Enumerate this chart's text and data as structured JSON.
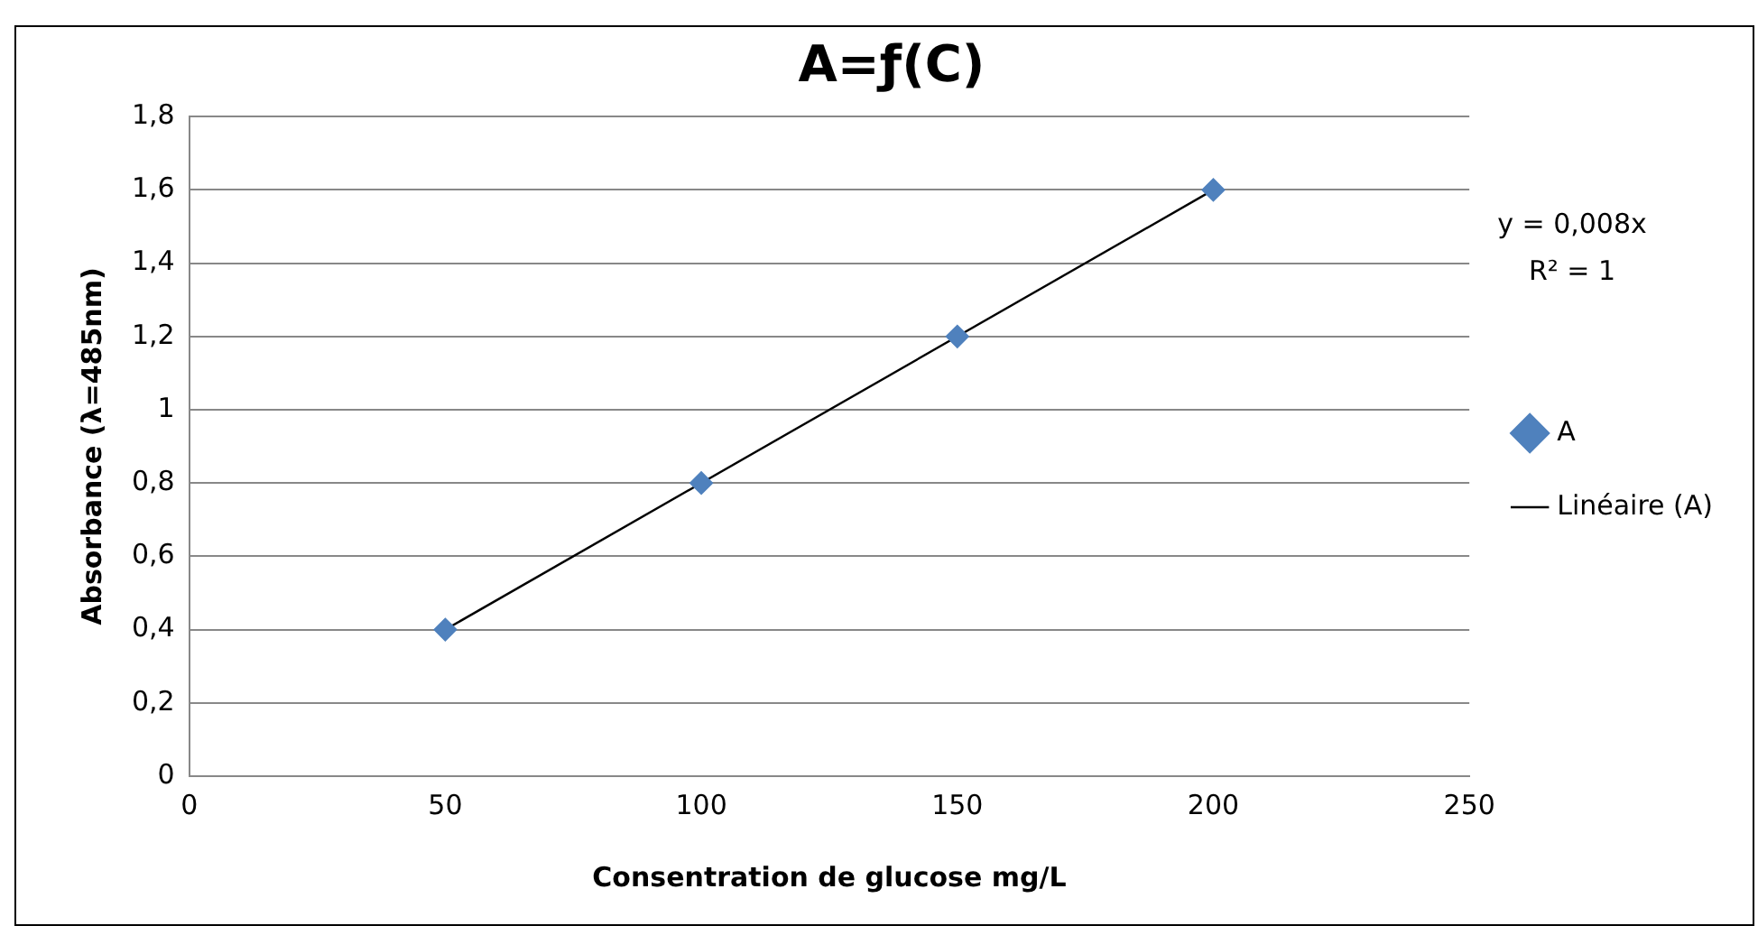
{
  "chart_data": {
    "type": "scatter",
    "title": "A=ƒ(C)",
    "xlabel": "Consentration de glucose mg/L",
    "ylabel": "Absorbance (λ=485nm)",
    "series": [
      {
        "name": "A",
        "color": "#4f81bd",
        "x": [
          50,
          100,
          150,
          200
        ],
        "values": [
          0.4,
          0.8,
          1.2,
          1.6
        ],
        "marker": "diamond"
      },
      {
        "name": "Linéaire (A)",
        "type": "line",
        "color": "#000000",
        "x": [
          50,
          200
        ],
        "values": [
          0.4,
          1.6
        ],
        "marker": "none",
        "line_style": "solid"
      }
    ],
    "xlim": [
      0,
      250
    ],
    "xticks": [
      0,
      50,
      100,
      150,
      200,
      250
    ],
    "ylim": [
      0,
      1.8
    ],
    "yticks": [
      {
        "value": 0,
        "label": "0"
      },
      {
        "value": 0.2,
        "label": "0,2"
      },
      {
        "value": 0.4,
        "label": "0,4"
      },
      {
        "value": 0.6,
        "label": "0,6"
      },
      {
        "value": 0.8,
        "label": "0,8"
      },
      {
        "value": 1,
        "label": "1"
      },
      {
        "value": 1.2,
        "label": "1,2"
      },
      {
        "value": 1.4,
        "label": "1,4"
      },
      {
        "value": 1.6,
        "label": "1,6"
      },
      {
        "value": 1.8,
        "label": "1,8"
      }
    ],
    "grid": "y",
    "legend": "right",
    "annotations": [
      "y = 0,008x",
      "R² = 1"
    ]
  }
}
